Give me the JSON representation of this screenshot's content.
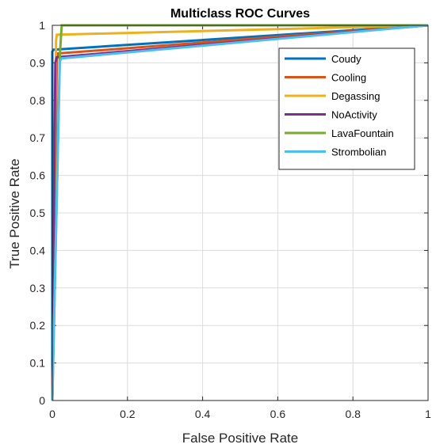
{
  "chart_data": {
    "type": "line",
    "title": "Multiclass ROC Curves",
    "xlabel": "False Positive Rate",
    "ylabel": "True Positive Rate",
    "xlim": [
      0,
      1
    ],
    "ylim": [
      0,
      1
    ],
    "xticks": [
      "0",
      "0.2",
      "0.4",
      "0.6",
      "0.8",
      "1"
    ],
    "yticks": [
      "0",
      "0.1",
      "0.2",
      "0.3",
      "0.4",
      "0.5",
      "0.6",
      "0.7",
      "0.8",
      "0.9",
      "1"
    ],
    "xtick_values": [
      0,
      0.2,
      0.4,
      0.6,
      0.8,
      1
    ],
    "ytick_values": [
      0,
      0.1,
      0.2,
      0.3,
      0.4,
      0.5,
      0.6,
      0.7,
      0.8,
      0.9,
      1
    ],
    "grid": true,
    "legend_position": "top-right",
    "series": [
      {
        "name": "Coudy",
        "color": "#0072BD",
        "x": [
          0,
          0,
          0.003,
          1
        ],
        "y": [
          0,
          0.93,
          0.935,
          1
        ]
      },
      {
        "name": "Cooling",
        "color": "#D95319",
        "x": [
          0,
          0.012,
          0.015,
          1
        ],
        "y": [
          0,
          0.91,
          0.925,
          1
        ]
      },
      {
        "name": "Degassing",
        "color": "#EDB120",
        "x": [
          0,
          0.01,
          0.012,
          1
        ],
        "y": [
          0,
          0.96,
          0.975,
          1
        ]
      },
      {
        "name": "NoActivity",
        "color": "#7E2F8E",
        "x": [
          0,
          0.008,
          0.012,
          1
        ],
        "y": [
          0,
          0.9,
          0.915,
          1
        ]
      },
      {
        "name": "LavaFountain",
        "color": "#77AC30",
        "x": [
          0,
          0.02,
          0.025,
          1
        ],
        "y": [
          0,
          0.92,
          1,
          1
        ]
      },
      {
        "name": "Strombolian",
        "color": "#4DBEEE",
        "x": [
          0,
          0.02,
          0.025,
          1
        ],
        "y": [
          0,
          0.905,
          0.912,
          1
        ]
      }
    ]
  }
}
